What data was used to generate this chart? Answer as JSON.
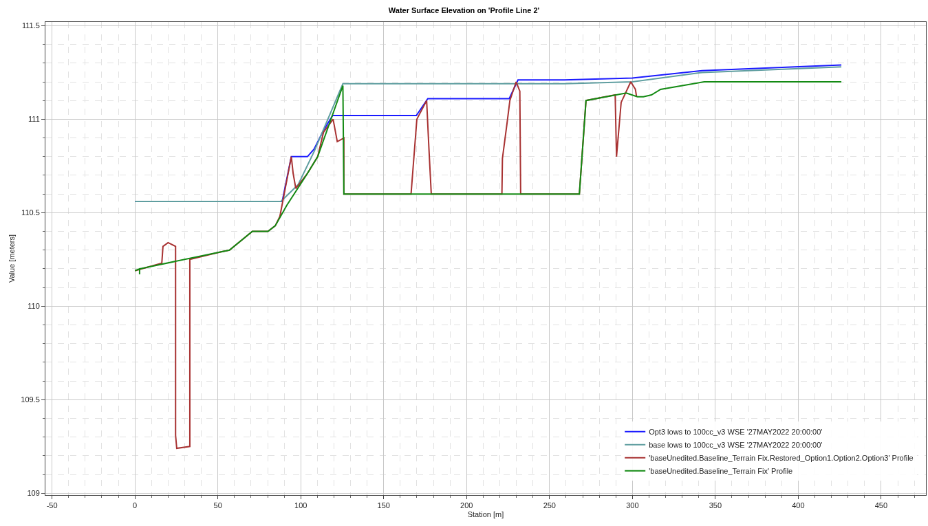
{
  "chart_data": {
    "type": "line",
    "title": "Water Surface Elevation on 'Profile Line 2'",
    "xlabel": "Station [m]",
    "ylabel": "Value [meters]",
    "xlim": [
      -54,
      477
    ],
    "xticks": [
      -50,
      0,
      50,
      100,
      150,
      200,
      250,
      300,
      350,
      400,
      450
    ],
    "ylim": [
      108.99,
      111.52
    ],
    "yticks": [
      109,
      109.5,
      110,
      110.5,
      111,
      111.5
    ],
    "grid": true,
    "legend": "bottom right",
    "marker": "none",
    "line_style": "solid",
    "series": [
      {
        "name": "Opt3 lows to 100cc_v3 WSE '27MAY2022 20:00:00'",
        "color": "#1a1aff",
        "x": [
          0,
          40,
          88.8,
          94.3,
          104,
          108,
          113.7,
          119.2,
          169.7,
          176.6,
          225.7,
          231,
          259,
          300,
          342,
          426
        ],
        "values": [
          110.56,
          110.56,
          110.56,
          110.8,
          110.8,
          110.84,
          110.94,
          111.02,
          111.02,
          111.11,
          111.11,
          111.21,
          111.21,
          111.22,
          111.26,
          111.29
        ]
      },
      {
        "name": "base lows to 100cc_v3 WSE '27MAY2022 20:00:00'",
        "color": "#5f9ea0",
        "x": [
          0,
          40,
          88,
          98.4,
          108.2,
          125.4,
          259,
          300,
          342,
          426
        ],
        "values": [
          110.56,
          110.56,
          110.56,
          110.65,
          110.83,
          111.19,
          111.19,
          111.2,
          111.25,
          111.28
        ]
      },
      {
        "name": "'baseUnedited.Baseline_Terrain Fix.Restored_Option1.Option2.Option3' Profile",
        "color": "#a83232",
        "x": [
          0,
          16.2,
          16.9,
          20,
          24.5,
          24.5,
          25.2,
          33.1,
          33.1,
          51.5,
          57,
          70.8,
          80.2,
          84.6,
          87.4,
          94.3,
          95.4,
          97,
          104,
          110.2,
          113.7,
          119.5,
          122,
          126,
          126,
          166.5,
          170,
          175.9,
          177.3,
          178.7,
          221.3,
          221.6,
          224.4,
          226.1,
          229.9,
          232.1,
          232.6,
          268,
          272,
          289.6,
          290.4,
          293.2,
          299,
          301.8,
          302.5
        ],
        "values": [
          110.19,
          110.23,
          110.32,
          110.34,
          110.32,
          109.31,
          109.24,
          109.25,
          110.25,
          110.29,
          110.3,
          110.4,
          110.4,
          110.43,
          110.48,
          110.8,
          110.71,
          110.63,
          110.71,
          110.8,
          110.93,
          111,
          110.88,
          110.9,
          110.6,
          110.6,
          111,
          111.1,
          110.84,
          110.6,
          110.6,
          110.79,
          110.98,
          111.1,
          111.2,
          111.15,
          110.6,
          110.6,
          111.1,
          111.13,
          110.8,
          111.09,
          111.2,
          111.16,
          111.12
        ]
      },
      {
        "name": "'baseUnedited.Baseline_Terrain Fix' Profile",
        "color": "#138a13",
        "x": [
          0,
          2.8,
          2.8,
          2.8,
          51.5,
          57,
          70.8,
          80.2,
          84.6,
          91.6,
          104,
          110.2,
          125.4,
          126,
          268,
          272,
          296.3,
          303,
          306.6,
          311.5,
          317,
          343.3,
          426
        ],
        "values": [
          110.19,
          110.2,
          110.17,
          110.2,
          110.29,
          110.3,
          110.4,
          110.4,
          110.43,
          110.54,
          110.71,
          110.8,
          111.18,
          110.6,
          110.6,
          111.1,
          111.14,
          111.12,
          111.12,
          111.13,
          111.16,
          111.2,
          111.2
        ]
      }
    ]
  }
}
